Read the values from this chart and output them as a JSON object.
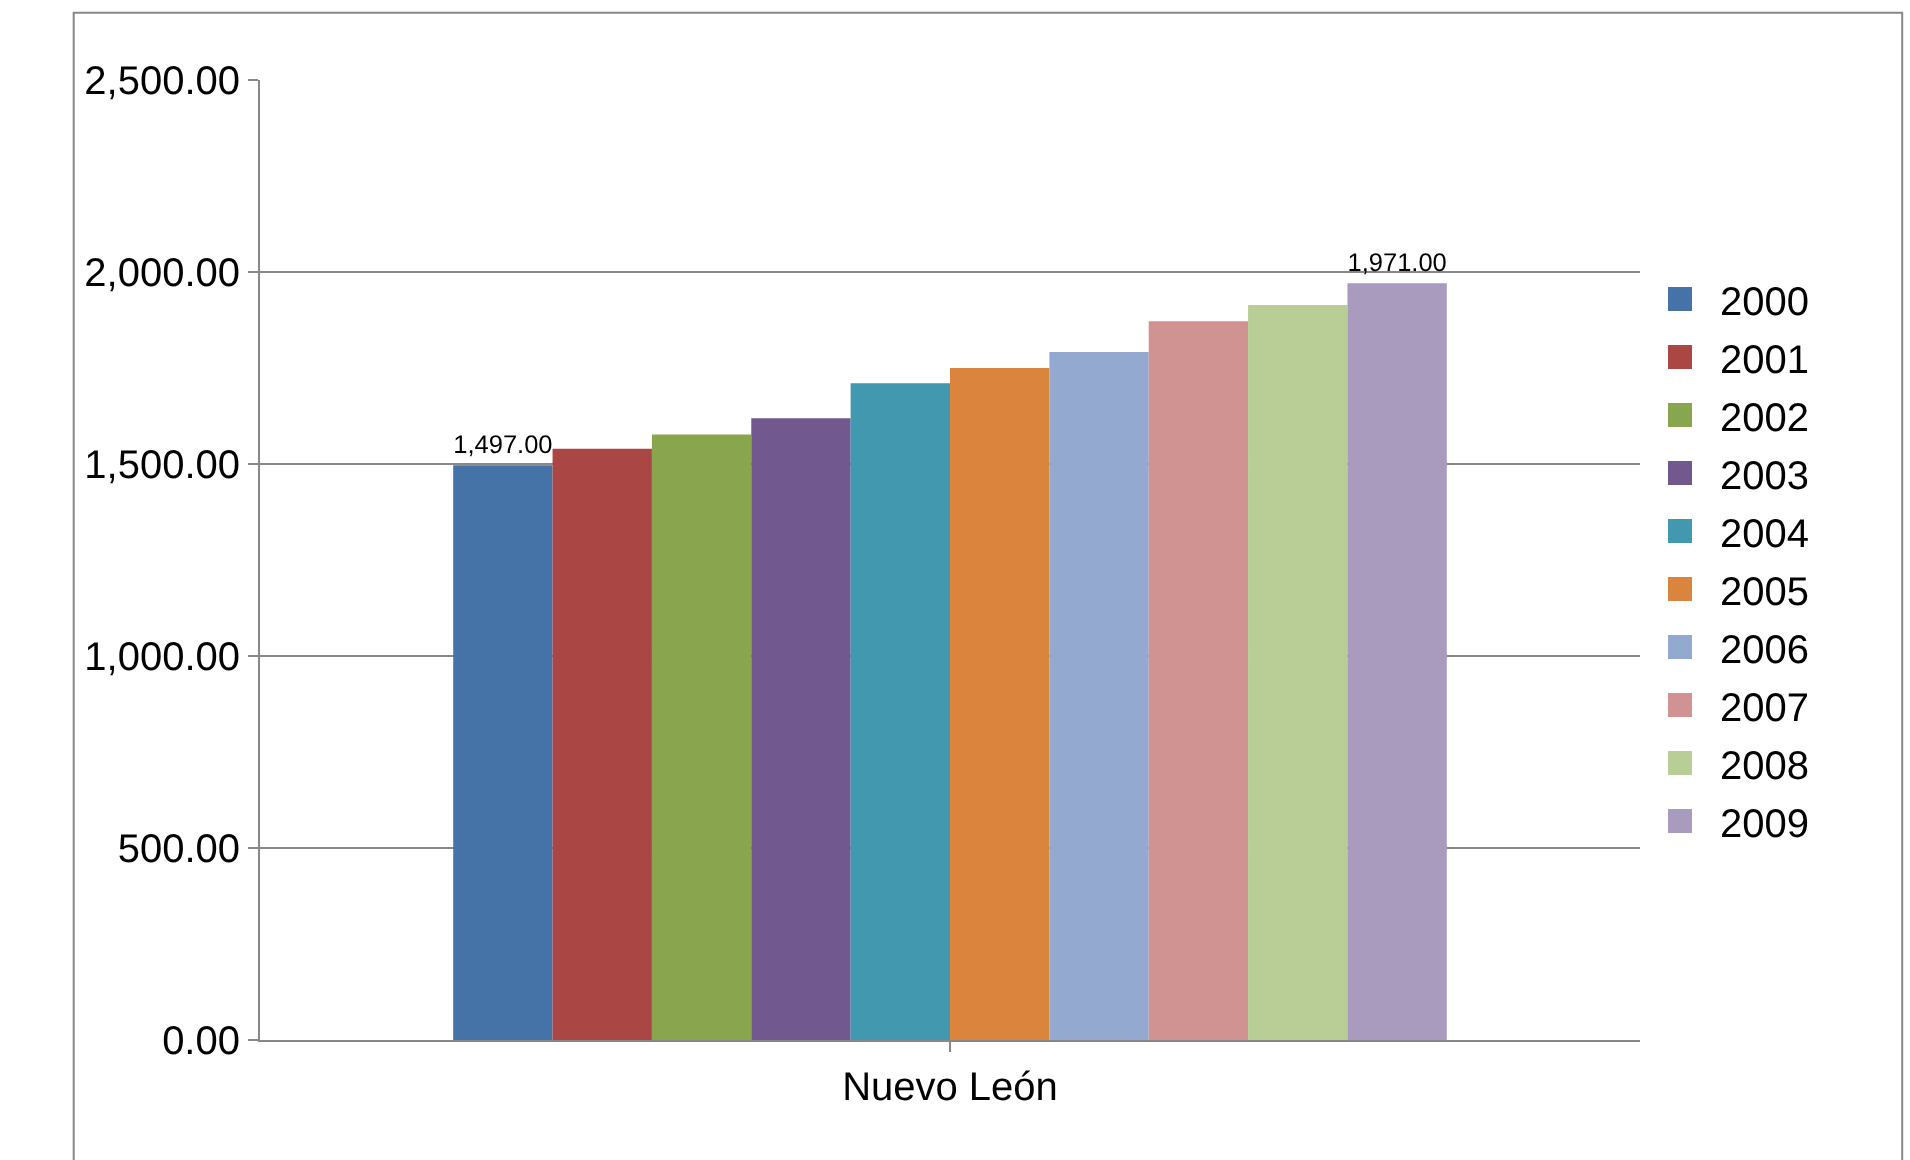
{
  "chart_data": {
    "type": "bar",
    "categories": [
      "Nuevo León"
    ],
    "ylim": [
      0,
      2500
    ],
    "yticks": [
      {
        "value": 0,
        "label": "0.00"
      },
      {
        "value": 500,
        "label": "500.00"
      },
      {
        "value": 1000,
        "label": "1,000.00"
      },
      {
        "value": 1500,
        "label": "1,500.00"
      },
      {
        "value": 2000,
        "label": "2,000.00"
      },
      {
        "value": 2500,
        "label": "2,500.00"
      }
    ],
    "grid": "y",
    "legend": "right",
    "series": [
      {
        "name": "2000",
        "color": "#4572a7",
        "values": [
          1497
        ],
        "value_labels": [
          "1,497.00"
        ]
      },
      {
        "name": "2001",
        "color": "#aa4643",
        "values": [
          1540
        ]
      },
      {
        "name": "2002",
        "color": "#89a54e",
        "values": [
          1577
        ]
      },
      {
        "name": "2003",
        "color": "#71588f",
        "values": [
          1619
        ]
      },
      {
        "name": "2004",
        "color": "#4198af",
        "values": [
          1710
        ]
      },
      {
        "name": "2005",
        "color": "#db843d",
        "values": [
          1750
        ]
      },
      {
        "name": "2006",
        "color": "#93a9cf",
        "values": [
          1792
        ]
      },
      {
        "name": "2007",
        "color": "#d19392",
        "values": [
          1872
        ]
      },
      {
        "name": "2008",
        "color": "#b9cd96",
        "values": [
          1914
        ]
      },
      {
        "name": "2009",
        "color": "#a99bbd",
        "values": [
          1971
        ],
        "value_labels": [
          "1,971.00"
        ]
      }
    ]
  }
}
